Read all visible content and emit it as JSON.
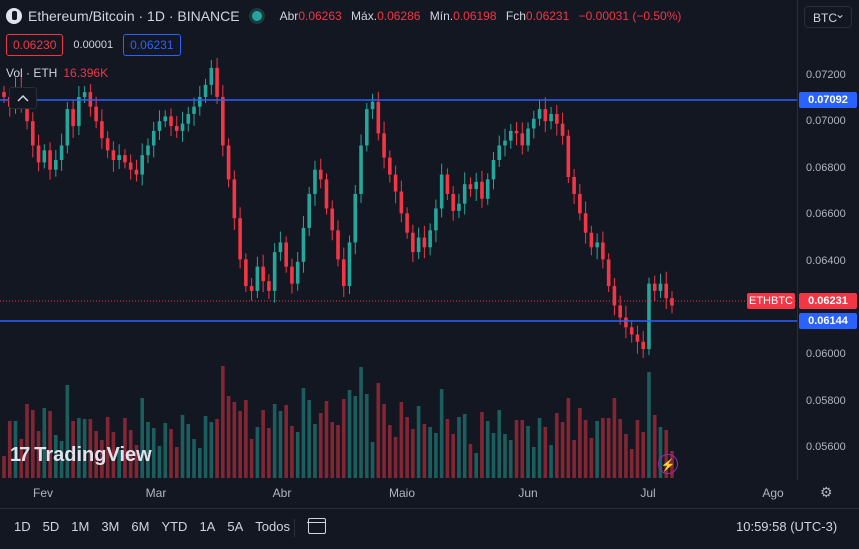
{
  "legend": {
    "title": "Ethereum/Bitcoin · 1D · BINANCE",
    "open_label": "Abr",
    "open": "0.06263",
    "high_label": "Máx.",
    "high": "0.06286",
    "low_label": "Mín.",
    "low": "0.06198",
    "close_label": "Fch",
    "close": "0.06231",
    "change": "−0.00031 (−0.50%)"
  },
  "trade": {
    "sell": "0.06230",
    "spread": "0.00001",
    "buy": "0.06231"
  },
  "volume": {
    "label": "Vol · ETH",
    "value": "16.396K"
  },
  "currency": "BTC",
  "price_ticks": [
    "0.07200",
    "0.07000",
    "0.06800",
    "0.06600",
    "0.06400",
    "0.06200",
    "0.06000",
    "0.05800",
    "0.05600"
  ],
  "levels": {
    "upper": "0.07092",
    "lower": "0.06144",
    "current": "0.06231",
    "current_symbol": "ETHBTC"
  },
  "months": [
    "Fev",
    "Mar",
    "Abr",
    "Maio",
    "Jun",
    "Jul",
    "Ago"
  ],
  "ranges": [
    "1D",
    "5D",
    "1M",
    "3M",
    "6M",
    "YTD",
    "1A",
    "5A",
    "Todos"
  ],
  "clock": "10:59:58 (UTC-3)",
  "branding": "TradingView",
  "colors": {
    "up": "#26a69a",
    "down": "#f23645",
    "level": "#2962ff",
    "background": "#131722"
  },
  "chart_data": {
    "type": "candlestick",
    "x_axis": "date",
    "ylim": [
      0.0552,
      0.075
    ],
    "closes": [
      0.071,
      0.0706,
      0.0714,
      0.0708,
      0.07,
      0.069,
      0.0683,
      0.0688,
      0.068,
      0.0684,
      0.069,
      0.0705,
      0.0698,
      0.071,
      0.0712,
      0.0706,
      0.07,
      0.0693,
      0.0688,
      0.0684,
      0.0686,
      0.0683,
      0.068,
      0.0678,
      0.0686,
      0.069,
      0.0696,
      0.07,
      0.0702,
      0.0698,
      0.0696,
      0.0699,
      0.0703,
      0.0706,
      0.071,
      0.0715,
      0.0722,
      0.071,
      0.069,
      0.0676,
      0.066,
      0.0643,
      0.0632,
      0.063,
      0.064,
      0.0634,
      0.063,
      0.0646,
      0.065,
      0.064,
      0.0633,
      0.0642,
      0.0656,
      0.067,
      0.068,
      0.0676,
      0.0664,
      0.0655,
      0.0643,
      0.0632,
      0.065,
      0.067,
      0.069,
      0.0705,
      0.0708,
      0.0695,
      0.0685,
      0.0678,
      0.0671,
      0.0662,
      0.0654,
      0.0646,
      0.0652,
      0.0648,
      0.0655,
      0.0664,
      0.0678,
      0.067,
      0.0663,
      0.0666,
      0.0674,
      0.0672,
      0.0675,
      0.0668,
      0.0676,
      0.0684,
      0.069,
      0.0692,
      0.0696,
      0.0695,
      0.069,
      0.0697,
      0.0701,
      0.0705,
      0.07,
      0.0703,
      0.0699,
      0.0694,
      0.0677,
      0.067,
      0.0662,
      0.0654,
      0.0648,
      0.065,
      0.0643,
      0.0632,
      0.0624,
      0.0619,
      0.0615,
      0.0612,
      0.0609,
      0.0606,
      0.0633,
      0.063,
      0.0633,
      0.0627,
      0.0624
    ]
  }
}
